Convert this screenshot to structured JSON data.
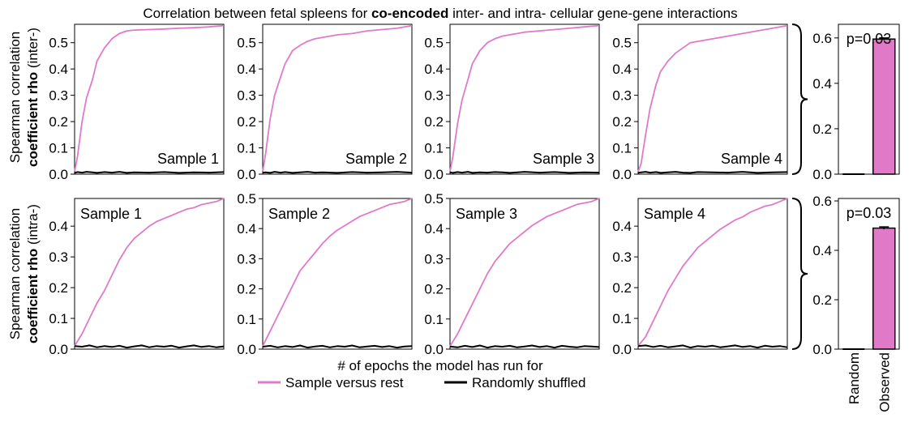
{
  "figure": {
    "title_plain": "Correlation between fetal spleens for ",
    "title_bold": "co-encoded",
    "title_rest": " inter- and intra- cellular gene-gene interactions",
    "ylabel_top": {
      "line1": "Spearman correlation",
      "line2_bold": "coefficient rho",
      "line2_plain": " (inter-)"
    },
    "ylabel_bottom": {
      "line1": "Spearman correlation",
      "line2_bold": "coefficient rho",
      "line2_plain": " (intra-)"
    },
    "xlabel": "# of epochs the model has run for",
    "legend": [
      {
        "label": "Sample versus rest",
        "color": "#e07ac8"
      },
      {
        "label": "Randomly shuffled",
        "color": "#000000"
      }
    ]
  },
  "chart_data": [
    {
      "type": "line",
      "panel": "inter",
      "annotation": "Sample 1",
      "ylim": [
        0,
        0.57
      ],
      "yticks": [
        "0.0",
        "0.1",
        "0.2",
        "0.3",
        "0.4",
        "0.5"
      ],
      "x": [
        0,
        2,
        5,
        8,
        12,
        15,
        20,
        25,
        30,
        35,
        40,
        50,
        60,
        70,
        80,
        90,
        100
      ],
      "series": [
        {
          "name": "Sample versus rest",
          "values": [
            0.01,
            0.07,
            0.2,
            0.29,
            0.36,
            0.43,
            0.48,
            0.515,
            0.535,
            0.545,
            0.548,
            0.55,
            0.552,
            0.555,
            0.557,
            0.56,
            0.565
          ]
        },
        {
          "name": "Randomly shuffled",
          "values": [
            0.005,
            0.008,
            0.006,
            0.009,
            0.007,
            0.005,
            0.008,
            0.006,
            0.009,
            0.005,
            0.007,
            0.006,
            0.008,
            0.005,
            0.007,
            0.006,
            0.008
          ]
        }
      ]
    },
    {
      "type": "line",
      "panel": "inter",
      "annotation": "Sample 2",
      "ylim": [
        0,
        0.57
      ],
      "yticks": [
        "0.0",
        "0.1",
        "0.2",
        "0.3",
        "0.4",
        "0.5"
      ],
      "x": [
        0,
        2,
        5,
        8,
        12,
        15,
        20,
        25,
        30,
        35,
        40,
        50,
        60,
        70,
        80,
        90,
        100
      ],
      "series": [
        {
          "name": "Sample versus rest",
          "values": [
            0.01,
            0.08,
            0.21,
            0.3,
            0.37,
            0.42,
            0.47,
            0.49,
            0.505,
            0.515,
            0.52,
            0.53,
            0.535,
            0.545,
            0.55,
            0.555,
            0.565
          ]
        },
        {
          "name": "Randomly shuffled",
          "values": [
            0.006,
            0.007,
            0.005,
            0.009,
            0.006,
            0.008,
            0.005,
            0.007,
            0.009,
            0.006,
            0.007,
            0.005,
            0.008,
            0.006,
            0.007,
            0.009,
            0.006
          ]
        }
      ]
    },
    {
      "type": "line",
      "panel": "inter",
      "annotation": "Sample 3",
      "ylim": [
        0,
        0.57
      ],
      "yticks": [
        "0.0",
        "0.1",
        "0.2",
        "0.3",
        "0.4",
        "0.5"
      ],
      "x": [
        0,
        2,
        5,
        8,
        12,
        15,
        20,
        25,
        30,
        35,
        40,
        50,
        60,
        70,
        80,
        90,
        100
      ],
      "series": [
        {
          "name": "Sample versus rest",
          "values": [
            0.01,
            0.07,
            0.19,
            0.28,
            0.36,
            0.42,
            0.47,
            0.5,
            0.515,
            0.525,
            0.53,
            0.54,
            0.545,
            0.55,
            0.555,
            0.56,
            0.565
          ]
        },
        {
          "name": "Randomly shuffled",
          "values": [
            0.007,
            0.005,
            0.008,
            0.006,
            0.009,
            0.005,
            0.007,
            0.006,
            0.008,
            0.007,
            0.005,
            0.009,
            0.006,
            0.008,
            0.005,
            0.007,
            0.006
          ]
        }
      ]
    },
    {
      "type": "line",
      "panel": "inter",
      "annotation": "Sample 4",
      "ylim": [
        0,
        0.57
      ],
      "yticks": [
        "0.0",
        "0.1",
        "0.2",
        "0.3",
        "0.4",
        "0.5"
      ],
      "x": [
        0,
        2,
        5,
        8,
        12,
        15,
        20,
        25,
        30,
        35,
        40,
        50,
        60,
        70,
        80,
        90,
        100
      ],
      "series": [
        {
          "name": "Sample versus rest",
          "values": [
            0.01,
            0.04,
            0.15,
            0.25,
            0.34,
            0.39,
            0.43,
            0.46,
            0.48,
            0.5,
            0.505,
            0.515,
            0.525,
            0.535,
            0.545,
            0.555,
            0.565
          ]
        },
        {
          "name": "Randomly shuffled",
          "values": [
            0.005,
            0.007,
            0.009,
            0.006,
            0.008,
            0.005,
            0.007,
            0.009,
            0.006,
            0.005,
            0.008,
            0.007,
            0.006,
            0.009,
            0.005,
            0.007,
            0.008
          ]
        }
      ]
    },
    {
      "type": "line",
      "panel": "intra",
      "annotation": "Sample 1",
      "ylim": [
        0,
        0.49
      ],
      "yticks": [
        "0.0",
        "0.1",
        "0.2",
        "0.3",
        "0.4"
      ],
      "x": [
        0,
        5,
        10,
        15,
        20,
        25,
        30,
        35,
        40,
        45,
        50,
        55,
        60,
        65,
        70,
        75,
        80,
        85,
        90,
        95,
        100
      ],
      "series": [
        {
          "name": "Sample versus rest",
          "values": [
            0.01,
            0.05,
            0.1,
            0.15,
            0.19,
            0.24,
            0.29,
            0.33,
            0.36,
            0.38,
            0.4,
            0.415,
            0.425,
            0.435,
            0.445,
            0.455,
            0.46,
            0.47,
            0.475,
            0.48,
            0.49
          ]
        },
        {
          "name": "Randomly shuffled",
          "values": [
            0.01,
            0.008,
            0.012,
            0.006,
            0.01,
            0.007,
            0.011,
            0.005,
            0.009,
            0.012,
            0.006,
            0.01,
            0.008,
            0.011,
            0.005,
            0.009,
            0.012,
            0.007,
            0.01,
            0.006,
            0.009
          ]
        }
      ]
    },
    {
      "type": "line",
      "panel": "intra",
      "annotation": "Sample 2",
      "ylim": [
        0,
        0.5
      ],
      "yticks": [
        "0.0",
        "0.1",
        "0.2",
        "0.3",
        "0.4",
        "0.5"
      ],
      "x": [
        0,
        5,
        10,
        15,
        20,
        25,
        30,
        35,
        40,
        45,
        50,
        55,
        60,
        65,
        70,
        75,
        80,
        85,
        90,
        95,
        100
      ],
      "series": [
        {
          "name": "Sample versus rest",
          "values": [
            0.01,
            0.06,
            0.11,
            0.16,
            0.21,
            0.26,
            0.29,
            0.32,
            0.35,
            0.375,
            0.395,
            0.41,
            0.425,
            0.44,
            0.45,
            0.46,
            0.47,
            0.48,
            0.485,
            0.49,
            0.5
          ]
        },
        {
          "name": "Randomly shuffled",
          "values": [
            0.008,
            0.011,
            0.006,
            0.01,
            0.007,
            0.012,
            0.005,
            0.009,
            0.011,
            0.006,
            0.01,
            0.008,
            0.012,
            0.006,
            0.009,
            0.011,
            0.007,
            0.01,
            0.005,
            0.009,
            0.01
          ]
        }
      ]
    },
    {
      "type": "line",
      "panel": "intra",
      "annotation": "Sample 3",
      "ylim": [
        0,
        0.5
      ],
      "yticks": [
        "0.0",
        "0.1",
        "0.2",
        "0.3",
        "0.4",
        "0.5"
      ],
      "x": [
        0,
        5,
        10,
        15,
        20,
        25,
        30,
        35,
        40,
        45,
        50,
        55,
        60,
        65,
        70,
        75,
        80,
        85,
        90,
        95,
        100
      ],
      "series": [
        {
          "name": "Sample versus rest",
          "values": [
            0.01,
            0.05,
            0.1,
            0.15,
            0.2,
            0.25,
            0.29,
            0.32,
            0.35,
            0.37,
            0.39,
            0.41,
            0.425,
            0.44,
            0.45,
            0.46,
            0.47,
            0.48,
            0.485,
            0.49,
            0.5
          ]
        },
        {
          "name": "Randomly shuffled",
          "values": [
            0.009,
            0.006,
            0.011,
            0.007,
            0.012,
            0.005,
            0.01,
            0.008,
            0.011,
            0.006,
            0.009,
            0.012,
            0.007,
            0.01,
            0.005,
            0.011,
            0.008,
            0.006,
            0.01,
            0.009,
            0.007
          ]
        }
      ]
    },
    {
      "type": "line",
      "panel": "intra",
      "annotation": "Sample 4",
      "ylim": [
        0,
        0.49
      ],
      "yticks": [
        "0.0",
        "0.1",
        "0.2",
        "0.3",
        "0.4"
      ],
      "x": [
        0,
        5,
        10,
        15,
        20,
        25,
        30,
        35,
        40,
        45,
        50,
        55,
        60,
        65,
        70,
        75,
        80,
        85,
        90,
        95,
        100
      ],
      "series": [
        {
          "name": "Sample versus rest",
          "values": [
            0.01,
            0.04,
            0.09,
            0.14,
            0.19,
            0.23,
            0.27,
            0.3,
            0.33,
            0.35,
            0.37,
            0.39,
            0.405,
            0.42,
            0.43,
            0.445,
            0.455,
            0.465,
            0.47,
            0.48,
            0.49
          ]
        },
        {
          "name": "Randomly shuffled",
          "values": [
            0.01,
            0.012,
            0.007,
            0.011,
            0.006,
            0.009,
            0.012,
            0.005,
            0.01,
            0.008,
            0.011,
            0.006,
            0.009,
            0.012,
            0.007,
            0.01,
            0.005,
            0.011,
            0.008,
            0.01,
            0.006
          ]
        }
      ]
    },
    {
      "type": "bar",
      "panel": "inter-summary",
      "annotation": "p=0.03",
      "categories": [
        "Random",
        "Observed"
      ],
      "values": [
        0.0,
        0.595
      ],
      "errors": [
        0.0,
        0.005
      ],
      "ylim": [
        0,
        0.66
      ],
      "yticks": [
        "0.0",
        "0.2",
        "0.4",
        "0.6"
      ],
      "colors": [
        "#e07ac8",
        "#e07ac8"
      ]
    },
    {
      "type": "bar",
      "panel": "intra-summary",
      "annotation": "p=0.03",
      "categories": [
        "Random",
        "Observed"
      ],
      "values": [
        0.0,
        0.49
      ],
      "errors": [
        0.0,
        0.005
      ],
      "ylim": [
        0,
        0.61
      ],
      "yticks": [
        "0.0",
        "0.2",
        "0.4",
        "0.6"
      ],
      "colors": [
        "#e07ac8",
        "#e07ac8"
      ]
    }
  ]
}
